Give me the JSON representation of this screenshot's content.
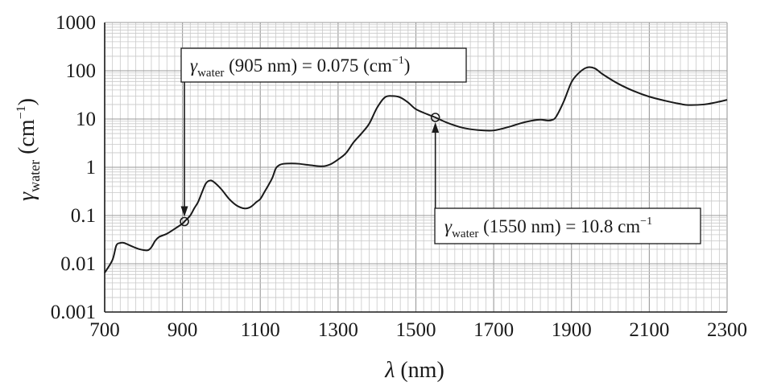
{
  "chart_data": {
    "type": "line",
    "scale": {
      "x": "linear",
      "y": "log"
    },
    "xlabel": {
      "symbol": "λ",
      "unit": " (nm)"
    },
    "ylabel": {
      "symbol": "γ",
      "sub": "water",
      "unit": " (cm",
      "sup": "−1",
      "close": ")"
    },
    "xlim": [
      700,
      2300
    ],
    "ylim": [
      0.001,
      1000
    ],
    "grid": true,
    "x_ticks": [
      700,
      900,
      1100,
      1300,
      1500,
      1700,
      1900,
      2100,
      2300
    ],
    "x_tick_labels": [
      "700",
      "900",
      "1100",
      "1300",
      "1500",
      "1700",
      "1900",
      "2100",
      "2300"
    ],
    "y_ticks": [
      0.001,
      0.01,
      0.1,
      1,
      10,
      100,
      1000
    ],
    "y_tick_labels": [
      "0.001",
      "0.01",
      "0.1",
      "1",
      "10",
      "100",
      "1000"
    ],
    "series": [
      {
        "x": [
          700,
          720,
          730,
          740,
          750,
          770,
          790,
          810,
          820,
          830,
          840,
          860,
          880,
          900,
          905,
          920,
          930,
          940,
          950,
          960,
          970,
          980,
          1000,
          1020,
          1040,
          1060,
          1075,
          1090,
          1100,
          1110,
          1130,
          1140,
          1150,
          1160,
          1180,
          1200,
          1230,
          1260,
          1280,
          1300,
          1320,
          1340,
          1360,
          1380,
          1400,
          1420,
          1440,
          1460,
          1480,
          1500,
          1530,
          1550,
          1580,
          1620,
          1660,
          1700,
          1740,
          1770,
          1800,
          1820,
          1840,
          1850,
          1860,
          1880,
          1900,
          1920,
          1940,
          1960,
          1980,
          2020,
          2060,
          2100,
          2140,
          2180,
          2200,
          2240,
          2270,
          2300
        ],
        "y": [
          0.0065,
          0.012,
          0.024,
          0.027,
          0.027,
          0.023,
          0.02,
          0.019,
          0.022,
          0.03,
          0.036,
          0.042,
          0.053,
          0.068,
          0.075,
          0.1,
          0.14,
          0.19,
          0.3,
          0.46,
          0.53,
          0.5,
          0.35,
          0.22,
          0.16,
          0.14,
          0.15,
          0.19,
          0.22,
          0.3,
          0.58,
          0.95,
          1.12,
          1.18,
          1.2,
          1.18,
          1.1,
          1.05,
          1.15,
          1.45,
          1.95,
          3.3,
          5.0,
          8.0,
          17,
          28,
          30,
          28,
          22,
          16,
          12.5,
          10.8,
          8.4,
          6.6,
          5.9,
          5.8,
          6.9,
          8.2,
          9.3,
          9.7,
          9.3,
          9.6,
          11,
          23,
          58,
          92,
          117,
          112,
          85,
          54,
          38,
          29,
          24,
          20.5,
          19.5,
          20,
          22,
          25
        ]
      }
    ],
    "annotations": [
      {
        "symbol": "γ",
        "sub": "water",
        "rest": " (905 nm) = 0.075 (cm",
        "sup": "−1",
        "close": ")",
        "point": {
          "x": 905,
          "y": 0.075
        }
      },
      {
        "symbol": "γ",
        "sub": "water",
        "rest": " (1550 nm) = 10.8 cm",
        "sup": "−1",
        "close": "",
        "point": {
          "x": 1550,
          "y": 10.8
        }
      }
    ]
  }
}
